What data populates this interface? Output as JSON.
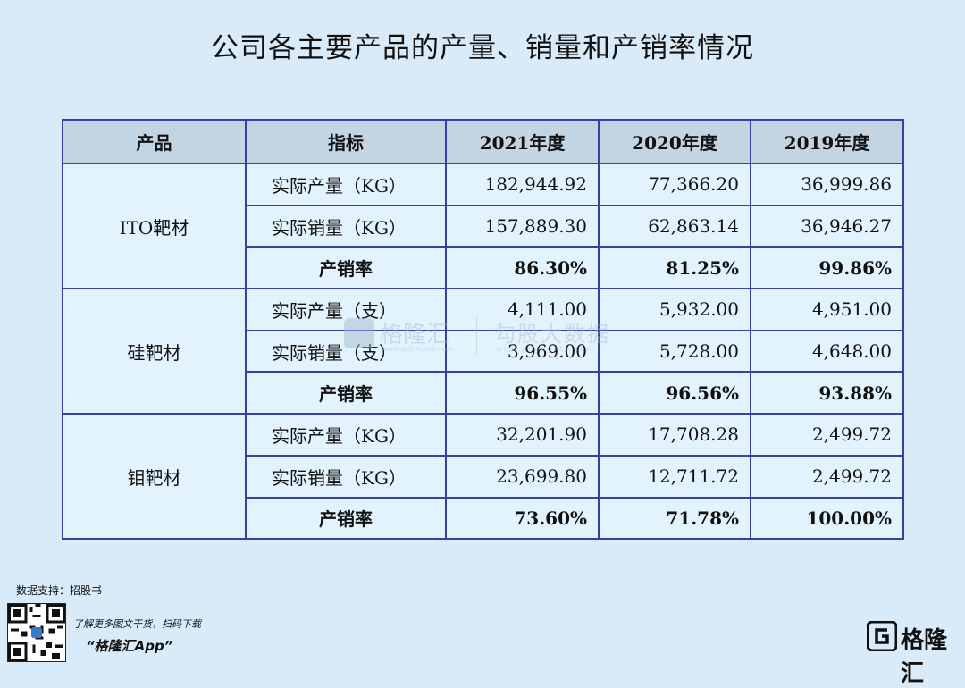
{
  "title": "公司各主要产品的产量、销量和产销率情况",
  "table": {
    "headers": [
      "产品",
      "指标",
      "2021年度",
      "2020年度",
      "2019年度"
    ],
    "groups": [
      {
        "product": "ITO靶材",
        "rows": [
          {
            "metric": "实际产量（KG）",
            "values": [
              "182,944.92",
              "77,366.20",
              "36,999.86"
            ]
          },
          {
            "metric": "实际销量（KG）",
            "values": [
              "157,889.30",
              "62,863.14",
              "36,946.27"
            ]
          },
          {
            "metric": "产销率",
            "values": [
              "86.30%",
              "81.25%",
              "99.86%"
            ]
          }
        ]
      },
      {
        "product": "硅靶材",
        "rows": [
          {
            "metric": "实际产量（支）",
            "values": [
              "4,111.00",
              "5,932.00",
              "4,951.00"
            ]
          },
          {
            "metric": "实际销量（支）",
            "values": [
              "3,969.00",
              "5,728.00",
              "4,648.00"
            ]
          },
          {
            "metric": "产销率",
            "values": [
              "96.55%",
              "96.56%",
              "93.88%"
            ]
          }
        ]
      },
      {
        "product": "钼靶材",
        "rows": [
          {
            "metric": "实际产量（KG）",
            "values": [
              "32,201.90",
              "17,708.28",
              "2,499.72"
            ]
          },
          {
            "metric": "实际销量（KG）",
            "values": [
              "23,699.80",
              "12,711.72",
              "2,499.72"
            ]
          },
          {
            "metric": "产销率",
            "values": [
              "73.60%",
              "71.78%",
              "100.00%"
            ]
          }
        ]
      }
    ]
  },
  "watermark": {
    "brand": "格隆汇",
    "brand_url": "www.gelonghui.com",
    "partner": "勾股大数据",
    "partner_url": "www.gogudata.com"
  },
  "footer": {
    "source": "数据支持：招股书",
    "promo": "了解更多图文干货，扫码下载",
    "app_name": "“格隆汇App”",
    "brand": "格隆汇"
  },
  "colors": {
    "background": "#d9ebf8",
    "header_fill": "#c3d5e3",
    "border": "#3a3fa0"
  }
}
